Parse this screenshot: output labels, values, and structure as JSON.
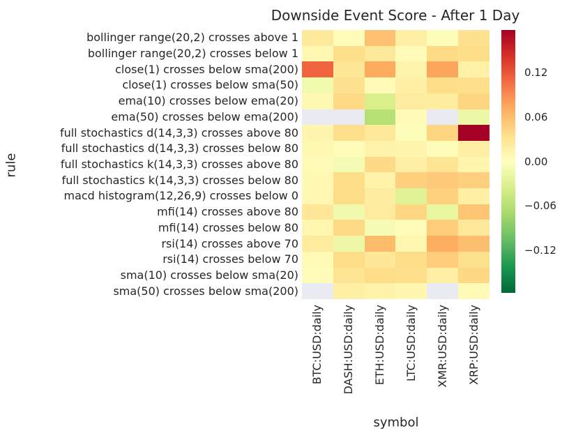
{
  "chart_data": {
    "type": "heatmap",
    "title": "Downside Event Score - After 1 Day",
    "xlabel": "symbol",
    "ylabel": "rule",
    "columns": [
      "BTC:USD:daily",
      "DASH:USD:daily",
      "ETH:USD:daily",
      "LTC:USD:daily",
      "XMR:USD:daily",
      "XRP:USD:daily"
    ],
    "rows": [
      "bollinger range(20,2) crosses above 1",
      "bollinger range(20,2) crosses below 1",
      "close(1) crosses below sma(200)",
      "close(1) crosses below sma(50)",
      "ema(10) crosses below ema(20)",
      "ema(50) crosses below ema(200)",
      "full stochastics d(14,3,3) crosses above 80",
      "full stochastics d(14,3,3) crosses below 80",
      "full stochastics k(14,3,3) crosses above 80",
      "full stochastics k(14,3,3) crosses below 80",
      "macd histogram(12,26,9) crosses below 0",
      "mfi(14) crosses above 80",
      "mfi(14) crosses below 80",
      "rsi(14) crosses above 70",
      "rsi(14) crosses below 70",
      "sma(10) crosses below sma(20)",
      "sma(50) crosses below sma(200)"
    ],
    "values": [
      [
        0.024,
        0.005,
        0.058,
        0.018,
        -0.004,
        0.033
      ],
      [
        0.008,
        0.036,
        0.026,
        0.005,
        0.039,
        0.037
      ],
      [
        0.112,
        0.028,
        0.073,
        0.013,
        0.076,
        0.016
      ],
      [
        -0.012,
        0.033,
        0.006,
        0.017,
        0.037,
        0.036
      ],
      [
        0.008,
        0.04,
        -0.035,
        0.021,
        0.022,
        0.043
      ],
      [
        null,
        null,
        -0.06,
        0.006,
        null,
        -0.017
      ],
      [
        0.011,
        0.036,
        0.026,
        -0.004,
        0.043,
        0.178
      ],
      [
        0.008,
        0.004,
        0.014,
        0.012,
        0.005,
        0.018
      ],
      [
        0.006,
        -0.008,
        0.04,
        0.017,
        0.03,
        0.012
      ],
      [
        0.008,
        0.037,
        0.015,
        0.047,
        0.052,
        0.048
      ],
      [
        0.009,
        0.038,
        0.021,
        -0.029,
        0.046,
        0.017
      ],
      [
        0.027,
        -0.013,
        0.023,
        0.042,
        -0.021,
        0.055
      ],
      [
        0.01,
        0.04,
        -0.009,
        0.004,
        0.05,
        0.026
      ],
      [
        0.023,
        -0.017,
        0.062,
        0.01,
        0.071,
        0.059
      ],
      [
        0.006,
        0.038,
        0.027,
        0.038,
        0.049,
        0.034
      ],
      [
        0.004,
        0.03,
        0.038,
        0.036,
        0.018,
        0.041
      ],
      [
        null,
        0.018,
        0.015,
        0.01,
        null,
        0.006
      ]
    ],
    "vmin": -0.178,
    "vmax": 0.178,
    "colormap": {
      "name": "RdYlGn_r",
      "stops": [
        "#006837",
        "#1a9850",
        "#66bd63",
        "#a6d96a",
        "#d9ef8b",
        "#ffffbf",
        "#fee08b",
        "#fdae61",
        "#f46d43",
        "#d73027",
        "#a50026"
      ]
    },
    "nan_color": "#eaeaf2",
    "text_color": "#262626",
    "colorbar_ticks": [
      {
        "label": "0.12",
        "value": 0.12
      },
      {
        "label": "0.06",
        "value": 0.06
      },
      {
        "label": "0.00",
        "value": 0.0
      },
      {
        "label": "−0.06",
        "value": -0.06
      },
      {
        "label": "−0.12",
        "value": -0.12
      }
    ],
    "legend_position": "right",
    "grid": false
  }
}
